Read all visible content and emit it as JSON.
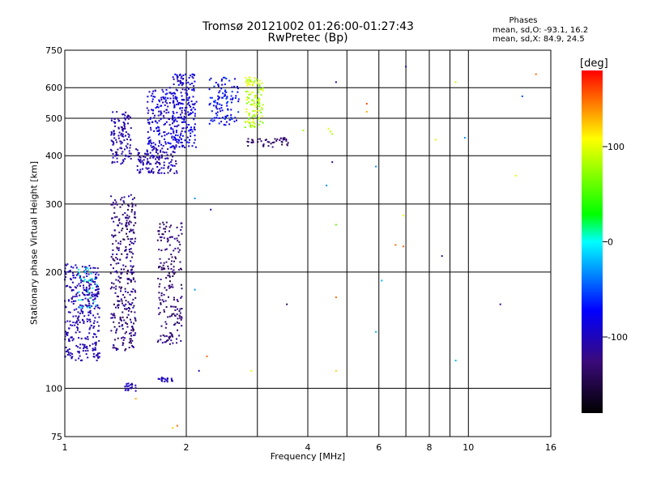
{
  "chart_data": {
    "type": "scatter",
    "title": "Tromsø 20121002 01:26:00-01:27:43",
    "subtitle": "RwPretec (Bp)",
    "xlabel": "Frequency [MHz]",
    "ylabel": "Stationary phase Virtual Height [km]",
    "x_scale": "log",
    "y_scale": "log",
    "xlim": [
      1,
      16
    ],
    "ylim": [
      75,
      750
    ],
    "x_ticks": [
      1,
      2,
      4,
      6,
      8,
      10,
      16
    ],
    "x_grid": [
      2,
      3,
      4,
      5,
      6,
      7,
      8,
      9,
      10
    ],
    "y_ticks": [
      75,
      100,
      200,
      300,
      400,
      500,
      600,
      750
    ],
    "y_grid": [
      100,
      200,
      300,
      400,
      500,
      600
    ],
    "grid": true,
    "colorbar": {
      "unit": "[deg]",
      "range": [
        -180,
        180
      ],
      "ticks": [
        100,
        0,
        -100
      ]
    },
    "stats": {
      "heading": "Phases",
      "o_mode": "mean, sd,O: -93.1, 16.2",
      "x_mode": "mean, sd,X:  84.9, 24.5"
    },
    "clusters": [
      {
        "x": [
          1.0,
          1.22
        ],
        "y": [
          118,
          210
        ],
        "phase": [
          -110,
          -95
        ],
        "n": 340
      },
      {
        "x": [
          1.08,
          1.2
        ],
        "y": [
          160,
          205
        ],
        "phase": [
          -20,
          10
        ],
        "n": 30
      },
      {
        "x": [
          1.3,
          1.5
        ],
        "y": [
          125,
          320
        ],
        "phase": [
          -150,
          -100
        ],
        "n": 320
      },
      {
        "x": [
          1.3,
          1.46
        ],
        "y": [
          380,
          520
        ],
        "phase": [
          -120,
          -95
        ],
        "n": 120
      },
      {
        "x": [
          1.5,
          1.9
        ],
        "y": [
          360,
          420
        ],
        "phase": [
          -120,
          -90
        ],
        "n": 140
      },
      {
        "x": [
          1.6,
          1.9
        ],
        "y": [
          420,
          600
        ],
        "phase": [
          -110,
          -70
        ],
        "n": 170
      },
      {
        "x": [
          1.85,
          2.12
        ],
        "y": [
          420,
          650
        ],
        "phase": [
          -110,
          -70
        ],
        "n": 200
      },
      {
        "x": [
          1.7,
          1.95
        ],
        "y": [
          130,
          270
        ],
        "phase": [
          -150,
          -110
        ],
        "n": 200
      },
      {
        "x": [
          2.28,
          2.7
        ],
        "y": [
          480,
          640
        ],
        "phase": [
          -100,
          -50
        ],
        "n": 110
      },
      {
        "x": [
          2.8,
          3.1
        ],
        "y": [
          470,
          640
        ],
        "phase": [
          60,
          110
        ],
        "n": 110
      },
      {
        "x": [
          2.8,
          3.6
        ],
        "y": [
          420,
          445
        ],
        "phase": [
          -150,
          -120
        ],
        "n": 45
      },
      {
        "x": [
          1.4,
          1.5
        ],
        "y": [
          98,
          103
        ],
        "phase": [
          -110,
          -90
        ],
        "n": 20
      },
      {
        "x": [
          1.7,
          1.85
        ],
        "y": [
          104,
          107
        ],
        "phase": [
          -110,
          -90
        ],
        "n": 20
      }
    ],
    "scattered_points": [
      {
        "x": 4.55,
        "y": 462,
        "phase": 90
      },
      {
        "x": 4.5,
        "y": 470,
        "phase": 100
      },
      {
        "x": 4.6,
        "y": 455,
        "phase": 80
      },
      {
        "x": 4.7,
        "y": 620,
        "phase": -100
      },
      {
        "x": 4.6,
        "y": 385,
        "phase": -120
      },
      {
        "x": 4.45,
        "y": 335,
        "phase": -30
      },
      {
        "x": 4.7,
        "y": 265,
        "phase": 60
      },
      {
        "x": 4.7,
        "y": 172,
        "phase": 150
      },
      {
        "x": 4.7,
        "y": 111,
        "phase": 120
      },
      {
        "x": 5.6,
        "y": 545,
        "phase": 160
      },
      {
        "x": 5.6,
        "y": 520,
        "phase": 130
      },
      {
        "x": 5.9,
        "y": 375,
        "phase": -30
      },
      {
        "x": 6.1,
        "y": 190,
        "phase": -20
      },
      {
        "x": 5.9,
        "y": 140,
        "phase": -20
      },
      {
        "x": 6.6,
        "y": 235,
        "phase": 150
      },
      {
        "x": 6.9,
        "y": 233,
        "phase": 150
      },
      {
        "x": 6.9,
        "y": 280,
        "phase": 100
      },
      {
        "x": 7.0,
        "y": 680,
        "phase": -100
      },
      {
        "x": 8.3,
        "y": 440,
        "phase": 100
      },
      {
        "x": 8.6,
        "y": 220,
        "phase": -120
      },
      {
        "x": 9.3,
        "y": 620,
        "phase": 90
      },
      {
        "x": 9.8,
        "y": 445,
        "phase": -30
      },
      {
        "x": 9.3,
        "y": 118,
        "phase": -20
      },
      {
        "x": 12.0,
        "y": 165,
        "phase": -120
      },
      {
        "x": 13.1,
        "y": 355,
        "phase": 100
      },
      {
        "x": 13.6,
        "y": 570,
        "phase": -50
      },
      {
        "x": 14.7,
        "y": 650,
        "phase": 150
      },
      {
        "x": 3.55,
        "y": 165,
        "phase": -140
      },
      {
        "x": 2.9,
        "y": 111,
        "phase": 100
      },
      {
        "x": 2.25,
        "y": 121,
        "phase": 150
      },
      {
        "x": 2.15,
        "y": 111,
        "phase": -100
      },
      {
        "x": 2.3,
        "y": 290,
        "phase": -110
      },
      {
        "x": 2.1,
        "y": 310,
        "phase": -30
      },
      {
        "x": 2.1,
        "y": 180,
        "phase": -30
      },
      {
        "x": 1.85,
        "y": 79,
        "phase": 120
      },
      {
        "x": 1.9,
        "y": 80,
        "phase": 150
      },
      {
        "x": 1.5,
        "y": 94,
        "phase": 130
      },
      {
        "x": 3.9,
        "y": 465,
        "phase": 80
      }
    ]
  }
}
